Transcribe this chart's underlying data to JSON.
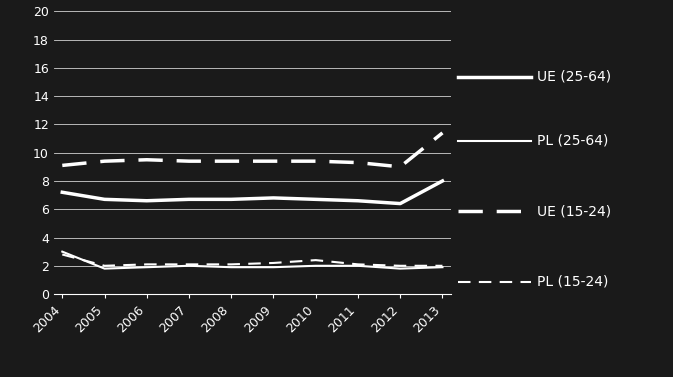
{
  "years": [
    2004,
    2005,
    2006,
    2007,
    2008,
    2009,
    2010,
    2011,
    2012,
    2013
  ],
  "UE_25_64": [
    7.2,
    6.7,
    6.6,
    6.7,
    6.7,
    6.8,
    6.7,
    6.6,
    6.4,
    8.0
  ],
  "PL_25_64": [
    3.0,
    1.8,
    1.9,
    2.0,
    1.9,
    1.9,
    2.0,
    2.0,
    1.8,
    1.9
  ],
  "UE_15_24": [
    9.1,
    9.4,
    9.5,
    9.4,
    9.4,
    9.4,
    9.4,
    9.3,
    9.0,
    11.4
  ],
  "PL_15_24": [
    2.8,
    2.0,
    2.1,
    2.1,
    2.1,
    2.2,
    2.4,
    2.1,
    2.0,
    2.0
  ],
  "ylim": [
    0,
    20
  ],
  "yticks": [
    0,
    2,
    4,
    6,
    8,
    10,
    12,
    14,
    16,
    18,
    20
  ],
  "bg_color": "#1a1a1a",
  "line_color": "#ffffff",
  "grid_color": "#ffffff",
  "legend_labels": [
    "UE (25-64)",
    "PL (25-64)",
    "UE (15-24)",
    "PL (15-24)"
  ]
}
